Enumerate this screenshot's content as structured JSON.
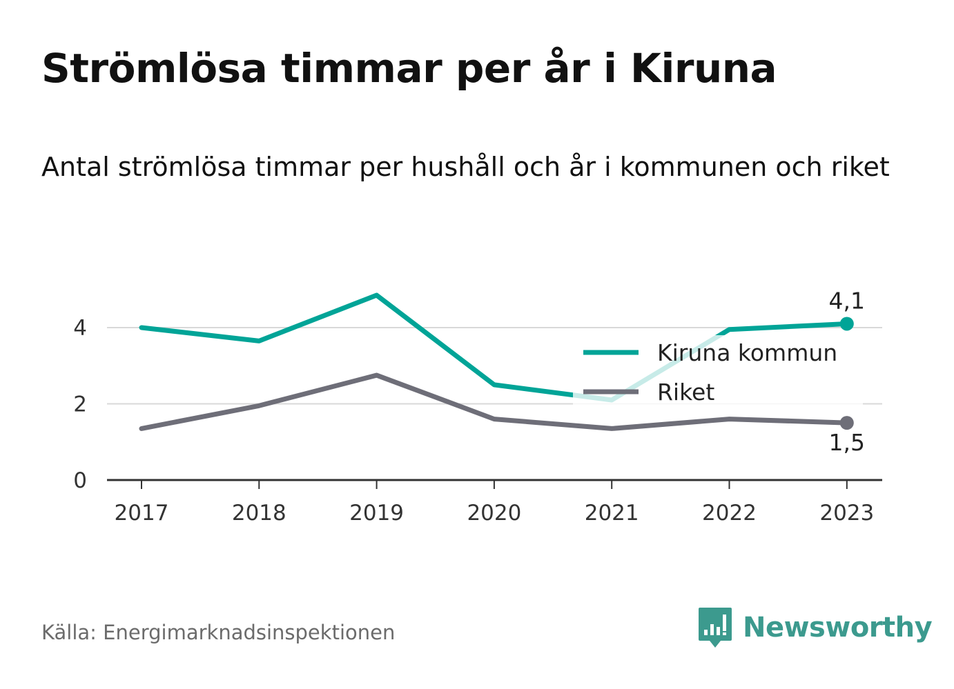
{
  "page": {
    "title": "Strömlösa timmar per år i Kiruna",
    "subtitle": "Antal strömlösa timmar per hushåll och år i kommunen och riket",
    "source": "Källa: Energimarknadsinspektionen",
    "brand": "Newsworthy"
  },
  "colors": {
    "kiruna": "#00a497",
    "riket": "#6e6e78",
    "grid": "#d8d8d8",
    "axis": "#333333",
    "brand": "#3c9a8e"
  },
  "chart_data": {
    "type": "line",
    "title": "Strömlösa timmar per år i Kiruna",
    "subtitle": "Antal strömlösa timmar per hushåll och år i kommunen och riket",
    "x": [
      "2017",
      "2018",
      "2019",
      "2020",
      "2021",
      "2022",
      "2023"
    ],
    "series": [
      {
        "name": "Kiruna kommun",
        "values": [
          4.0,
          3.65,
          4.85,
          2.5,
          2.1,
          3.95,
          4.1
        ],
        "end_label": "4,1"
      },
      {
        "name": "Riket",
        "values": [
          1.35,
          1.95,
          2.75,
          1.6,
          1.35,
          1.6,
          1.5
        ],
        "end_label": "1,5"
      }
    ],
    "yticks": [
      0,
      2,
      4
    ],
    "ytick_labels": [
      "0",
      "2",
      "4"
    ],
    "ylim": [
      0,
      5
    ],
    "xlabel": "",
    "ylabel": "",
    "grid": true,
    "legend_position": "right"
  }
}
